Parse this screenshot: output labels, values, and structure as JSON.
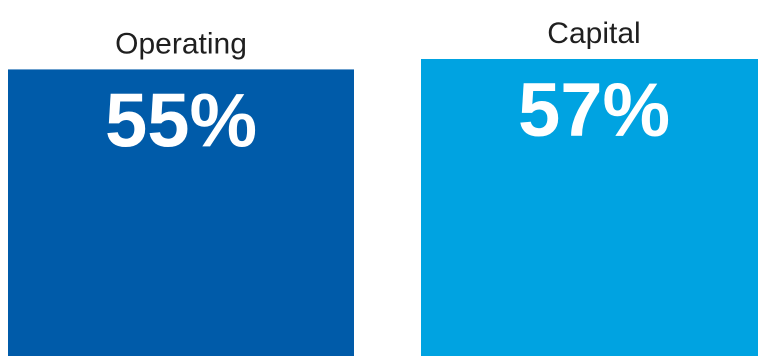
{
  "chart_data": {
    "type": "bar",
    "categories": [
      "Operating",
      "Capital"
    ],
    "values": [
      55,
      57
    ],
    "value_labels": [
      "55%",
      "57%"
    ],
    "colors": [
      "#005ba9",
      "#00a3e1"
    ],
    "ylim": [
      0,
      57
    ],
    "title": "",
    "xlabel": "",
    "ylabel": "",
    "grid": false,
    "legend": "none"
  }
}
